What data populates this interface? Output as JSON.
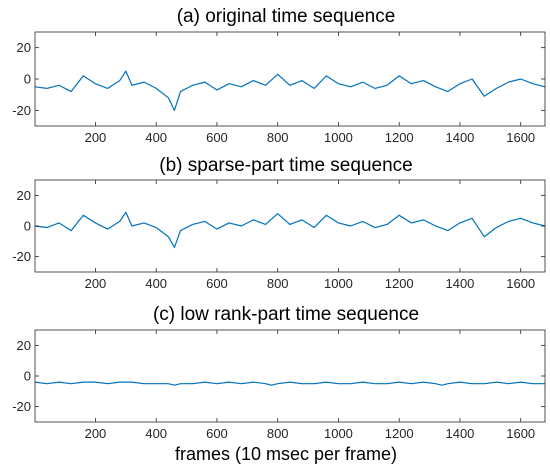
{
  "chart_data": [
    {
      "type": "line",
      "title": "(a) original time sequence",
      "xlabel": "",
      "ylabel": "",
      "xlim": [
        1,
        1680
      ],
      "ylim": [
        -30,
        30
      ],
      "xticks": [
        200,
        400,
        600,
        800,
        1000,
        1200,
        1400,
        1600
      ],
      "yticks": [
        20,
        0,
        -20
      ],
      "grid": false,
      "series": [
        {
          "color": "#0072BD",
          "x": [
            1,
            40,
            80,
            120,
            160,
            200,
            240,
            280,
            300,
            320,
            360,
            400,
            440,
            460,
            480,
            520,
            560,
            600,
            640,
            680,
            720,
            760,
            800,
            840,
            880,
            920,
            960,
            1000,
            1040,
            1080,
            1120,
            1160,
            1200,
            1240,
            1280,
            1320,
            1360,
            1400,
            1440,
            1480,
            1520,
            1560,
            1600,
            1640,
            1680
          ],
          "y": [
            -5,
            -6,
            -4,
            -8,
            2,
            -3,
            -6,
            -1,
            5,
            -4,
            -2,
            -6,
            -12,
            -20,
            -8,
            -4,
            -2,
            -7,
            -3,
            -5,
            -1,
            -4,
            3,
            -4,
            -1,
            -6,
            2,
            -3,
            -5,
            -2,
            -6,
            -4,
            2,
            -3,
            -1,
            -5,
            -8,
            -3,
            0,
            -11,
            -6,
            -2,
            0,
            -3,
            -5
          ]
        }
      ]
    },
    {
      "type": "line",
      "title": "(b) sparse-part time sequence",
      "xlabel": "",
      "ylabel": "",
      "xlim": [
        1,
        1680
      ],
      "ylim": [
        -30,
        30
      ],
      "xticks": [
        200,
        400,
        600,
        800,
        1000,
        1200,
        1400,
        1600
      ],
      "yticks": [
        20,
        0,
        -20
      ],
      "grid": false,
      "series": [
        {
          "color": "#0072BD",
          "x": [
            1,
            40,
            80,
            120,
            160,
            200,
            240,
            280,
            300,
            320,
            360,
            400,
            440,
            460,
            480,
            520,
            560,
            600,
            640,
            680,
            720,
            760,
            800,
            840,
            880,
            920,
            960,
            1000,
            1040,
            1080,
            1120,
            1160,
            1200,
            1240,
            1280,
            1320,
            1360,
            1400,
            1440,
            1480,
            1520,
            1560,
            1600,
            1640,
            1680
          ],
          "y": [
            0,
            -1,
            2,
            -3,
            7,
            2,
            -2,
            3,
            9,
            0,
            2,
            -1,
            -7,
            -14,
            -3,
            1,
            3,
            -2,
            2,
            0,
            4,
            1,
            8,
            1,
            4,
            -1,
            7,
            2,
            0,
            3,
            -1,
            1,
            7,
            2,
            4,
            0,
            -3,
            2,
            5,
            -7,
            -1,
            3,
            5,
            2,
            0
          ]
        }
      ]
    },
    {
      "type": "line",
      "title": "(c) low rank-part time sequence",
      "xlabel": "frames (10 msec per frame)",
      "ylabel": "",
      "xlim": [
        1,
        1680
      ],
      "ylim": [
        -30,
        30
      ],
      "xticks": [
        200,
        400,
        600,
        800,
        1000,
        1200,
        1400,
        1600
      ],
      "yticks": [
        20,
        0,
        -20
      ],
      "grid": false,
      "series": [
        {
          "color": "#0072BD",
          "x": [
            1,
            40,
            80,
            120,
            160,
            200,
            240,
            280,
            320,
            360,
            400,
            440,
            460,
            480,
            520,
            560,
            600,
            640,
            680,
            720,
            760,
            780,
            800,
            840,
            880,
            920,
            960,
            1000,
            1040,
            1080,
            1120,
            1160,
            1200,
            1240,
            1280,
            1320,
            1340,
            1360,
            1400,
            1440,
            1480,
            1520,
            1560,
            1600,
            1640,
            1680
          ],
          "y": [
            -4,
            -5,
            -4,
            -5,
            -4,
            -4,
            -5,
            -4,
            -4,
            -5,
            -5,
            -5,
            -6,
            -5,
            -5,
            -4,
            -5,
            -4,
            -5,
            -4,
            -5,
            -6,
            -5,
            -4,
            -5,
            -5,
            -4,
            -5,
            -5,
            -4,
            -5,
            -5,
            -4,
            -5,
            -4,
            -5,
            -6,
            -5,
            -4,
            -5,
            -5,
            -4,
            -5,
            -4,
            -5,
            -5
          ]
        }
      ]
    }
  ]
}
